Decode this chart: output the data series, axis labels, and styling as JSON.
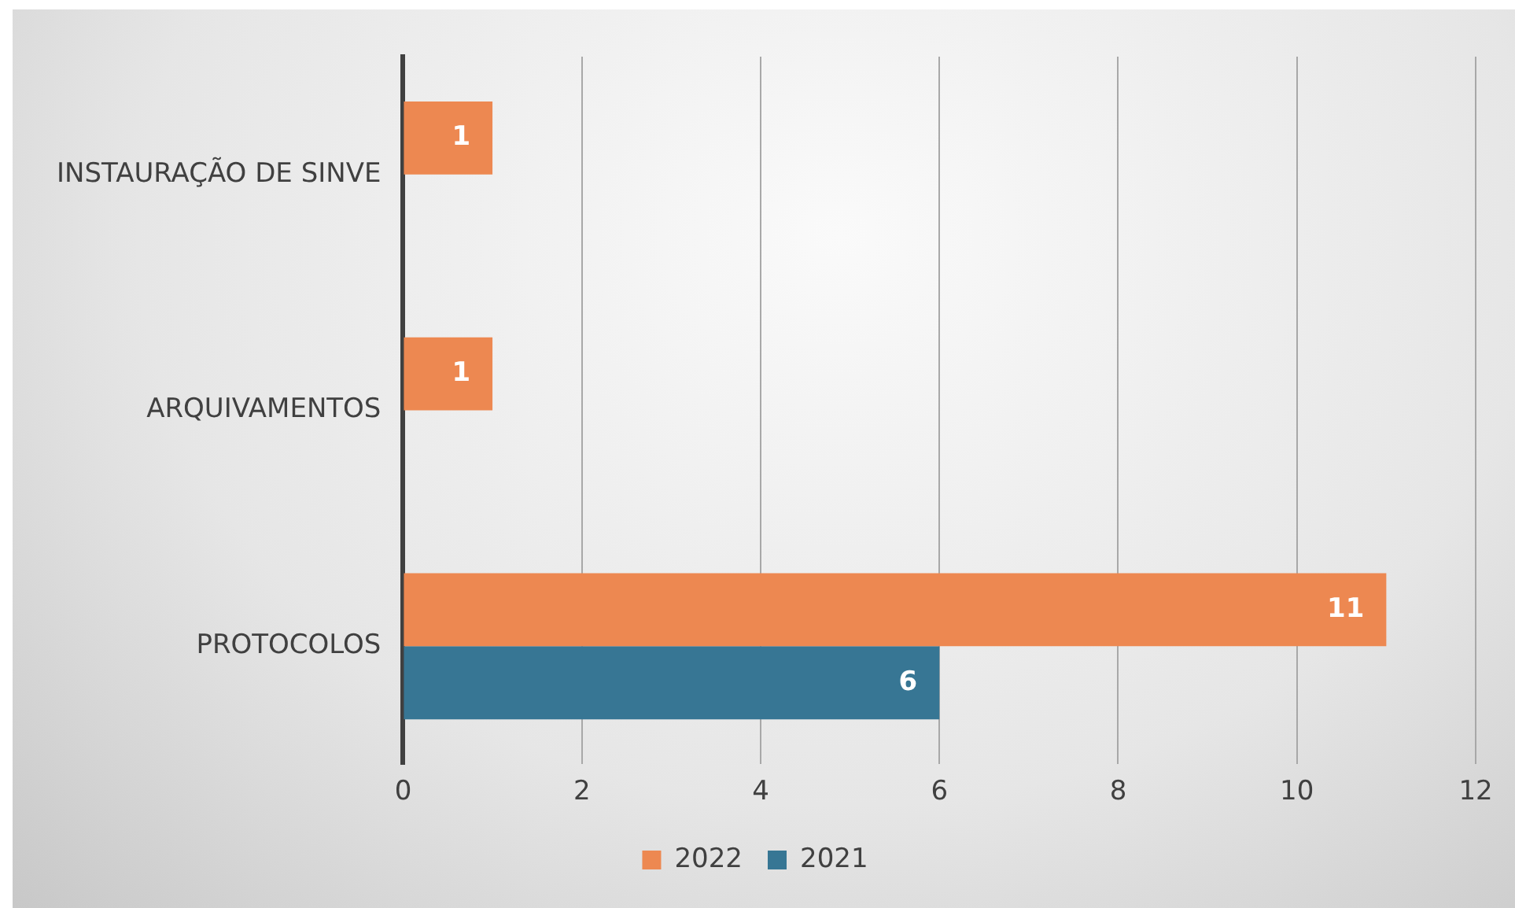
{
  "chart_data": {
    "type": "bar",
    "orientation": "horizontal",
    "categories": [
      "INSTAURAÇÃO DE SINVE",
      "ARQUIVAMENTOS",
      "PROTOCOLOS"
    ],
    "series": [
      {
        "name": "2022",
        "color": "#ed8851",
        "values": [
          1,
          1,
          11
        ]
      },
      {
        "name": "2021",
        "color": "#377694",
        "values": [
          null,
          null,
          6
        ]
      }
    ],
    "xlim": [
      0,
      12
    ],
    "xticks": [
      0,
      2,
      4,
      6,
      8,
      10,
      12
    ],
    "grid": "x",
    "legend": "bottom",
    "data_labels": true
  }
}
